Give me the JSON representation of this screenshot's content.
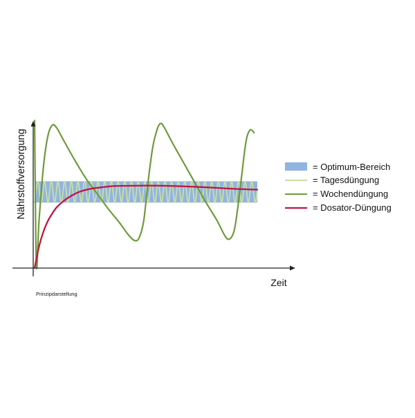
{
  "chart_data": {
    "type": "line",
    "title": "",
    "ylabel": "Nährstoffversorgung",
    "xlabel": "Zeit",
    "note": "Prinzipdarstellung",
    "xlim": [
      0,
      100
    ],
    "ylim": [
      0,
      100
    ],
    "grid": false,
    "legend_position": "right",
    "optimum_band": {
      "label": "= Optimum-Bereich",
      "low": 44,
      "high": 58,
      "color": "#92B4E0"
    },
    "series": [
      {
        "name": "= Tagesdüngung",
        "color": "#C9DFA6",
        "points": [
          [
            0,
            44
          ],
          [
            1.5,
            58
          ],
          [
            3,
            44
          ],
          [
            4.5,
            58
          ],
          [
            6,
            44
          ],
          [
            7.5,
            58
          ],
          [
            9,
            44
          ],
          [
            10.5,
            58
          ],
          [
            12,
            44
          ],
          [
            13.5,
            58
          ],
          [
            15,
            44
          ],
          [
            16.5,
            58
          ],
          [
            18,
            44
          ],
          [
            19.5,
            58
          ],
          [
            21,
            44
          ],
          [
            22.5,
            58
          ],
          [
            24,
            44
          ],
          [
            25.5,
            58
          ],
          [
            27,
            44
          ],
          [
            28.5,
            58
          ],
          [
            30,
            44
          ],
          [
            31.5,
            58
          ],
          [
            33,
            44
          ],
          [
            34.5,
            58
          ],
          [
            36,
            44
          ],
          [
            37.5,
            58
          ],
          [
            39,
            44
          ],
          [
            40.5,
            58
          ],
          [
            42,
            44
          ],
          [
            43.5,
            58
          ],
          [
            45,
            44
          ],
          [
            46.5,
            58
          ],
          [
            48,
            44
          ],
          [
            49.5,
            58
          ],
          [
            51,
            44
          ],
          [
            52.5,
            58
          ],
          [
            54,
            44
          ],
          [
            55.5,
            58
          ],
          [
            57,
            44
          ],
          [
            58.5,
            58
          ],
          [
            60,
            44
          ],
          [
            61.5,
            58
          ],
          [
            63,
            44
          ],
          [
            64.5,
            58
          ],
          [
            66,
            44
          ],
          [
            67.5,
            58
          ],
          [
            69,
            44
          ],
          [
            70.5,
            58
          ],
          [
            72,
            44
          ],
          [
            73.5,
            58
          ],
          [
            75,
            44
          ],
          [
            76.5,
            58
          ],
          [
            78,
            44
          ],
          [
            79.5,
            58
          ],
          [
            81,
            44
          ],
          [
            82.5,
            58
          ],
          [
            84,
            44
          ],
          [
            85.5,
            58
          ],
          [
            87,
            44
          ],
          [
            88.5,
            58
          ],
          [
            90,
            44
          ],
          [
            91.5,
            58
          ],
          [
            93,
            44
          ],
          [
            94.5,
            58
          ],
          [
            96,
            44
          ],
          [
            97.5,
            58
          ],
          [
            99,
            44
          ],
          [
            100,
            52
          ]
        ]
      },
      {
        "name": "= Wochendüngung",
        "color": "#6E9A3A",
        "points": [
          [
            0,
            98
          ],
          [
            0.8,
            3
          ],
          [
            2,
            32
          ],
          [
            4,
            68
          ],
          [
            6,
            88
          ],
          [
            8,
            95
          ],
          [
            10,
            93
          ],
          [
            13,
            85
          ],
          [
            18,
            72
          ],
          [
            23,
            60
          ],
          [
            28,
            50
          ],
          [
            33,
            40
          ],
          [
            38,
            31
          ],
          [
            42,
            23
          ],
          [
            45,
            19
          ],
          [
            47,
            21
          ],
          [
            49,
            32
          ],
          [
            51,
            58
          ],
          [
            53,
            80
          ],
          [
            55,
            92
          ],
          [
            56.5,
            96
          ],
          [
            58,
            94
          ],
          [
            62,
            83
          ],
          [
            67,
            70
          ],
          [
            72,
            57
          ],
          [
            77,
            44
          ],
          [
            82,
            32
          ],
          [
            85.5,
            22
          ],
          [
            87.5,
            20
          ],
          [
            89.5,
            25
          ],
          [
            91,
            38
          ],
          [
            93,
            62
          ],
          [
            94.5,
            80
          ],
          [
            95.5,
            88
          ],
          [
            97,
            92
          ],
          [
            98.5,
            90
          ]
        ]
      },
      {
        "name": "= Dosator-Düngung",
        "color": "#C21240",
        "points": [
          [
            0,
            1
          ],
          [
            2,
            15
          ],
          [
            4,
            25
          ],
          [
            6,
            32
          ],
          [
            8,
            37
          ],
          [
            10,
            41
          ],
          [
            13,
            45
          ],
          [
            16,
            48
          ],
          [
            20,
            51
          ],
          [
            25,
            53
          ],
          [
            30,
            54
          ],
          [
            35,
            54.8
          ],
          [
            40,
            55
          ],
          [
            50,
            55.2
          ],
          [
            60,
            55
          ],
          [
            70,
            54.5
          ],
          [
            80,
            53.8
          ],
          [
            90,
            53
          ],
          [
            100,
            52.5
          ]
        ]
      }
    ]
  }
}
